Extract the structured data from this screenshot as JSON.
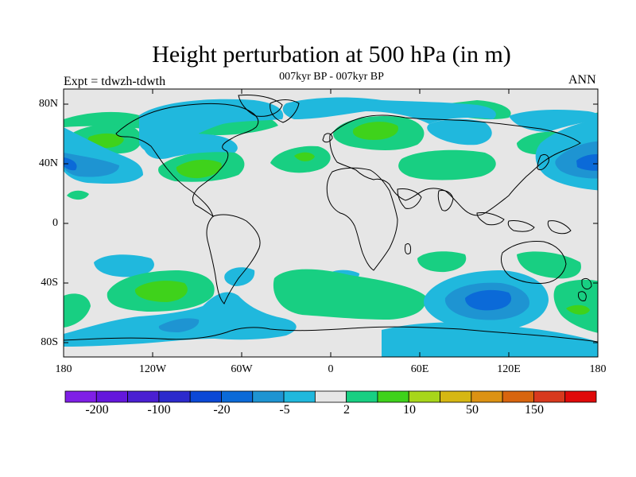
{
  "title": "Height perturbation at 500 hPa (in m)",
  "subtitle": "007kyr BP - 007kyr BP",
  "left_label": "Expt = tdwzh-tdwth",
  "right_label": "ANN",
  "map": {
    "projection": "cylindrical equidistant",
    "lon_range": [
      -180,
      180
    ],
    "lat_range": [
      -90,
      90
    ],
    "background_color": "#e6e6e6",
    "lat_ticks": [
      "80N",
      "40N",
      "0",
      "40S",
      "80S"
    ],
    "lon_ticks": [
      "180",
      "120W",
      "60W",
      "0",
      "60E",
      "120E",
      "180"
    ],
    "features": [
      {
        "sign": "positive",
        "level": "2 to 10",
        "region": "North Pacific / Aleutian (~55N, 150W)"
      },
      {
        "sign": "positive",
        "level": "10 to 20",
        "region": "Central North America (~45N, 95W)"
      },
      {
        "sign": "positive",
        "level": "10 to 20",
        "region": "Eastern Europe / Scandinavia (~60N, 30E)"
      },
      {
        "sign": "positive",
        "level": "2 to 10",
        "region": "North Atlantic (~40N, 20W)"
      },
      {
        "sign": "positive",
        "level": "2 to 10",
        "region": "Central Asia (~40N, 70E)"
      },
      {
        "sign": "positive",
        "level": "10 to 20",
        "region": "South Pacific (~45S, 110W)"
      },
      {
        "sign": "positive",
        "level": "2 to 10",
        "region": "South Atlantic / Indian Ocean (~50S, 20E)"
      },
      {
        "sign": "negative",
        "level": "-20 to -5",
        "region": "North Pacific west of North America (~45N, 165W)"
      },
      {
        "sign": "negative",
        "level": "-20 to -5",
        "region": "Northwest Pacific / Japan (~40N, 160E)"
      },
      {
        "sign": "negative",
        "level": "-5 to -2",
        "region": "Arctic / Greenland"
      },
      {
        "sign": "negative",
        "level": "-20 to -5",
        "region": "South Indian Ocean (~50S, 100E)"
      },
      {
        "sign": "negative",
        "level": "-5 to -2",
        "region": "Southern Ocean belt (~65S)"
      }
    ]
  },
  "colorbar": {
    "colors": [
      "#7f1fe6",
      "#6417dc",
      "#4a1fd2",
      "#2c2acc",
      "#0b48d6",
      "#0b6ad8",
      "#1e94d2",
      "#20b8dd",
      "#e6e6e6",
      "#18cf82",
      "#3fd21b",
      "#a7d61a",
      "#d6b713",
      "#dc9213",
      "#d8650e",
      "#d8391e",
      "#e00a0a"
    ],
    "labels": [
      "-200",
      "-100",
      "-20",
      "-5",
      "2",
      "10",
      "50",
      "150"
    ]
  }
}
